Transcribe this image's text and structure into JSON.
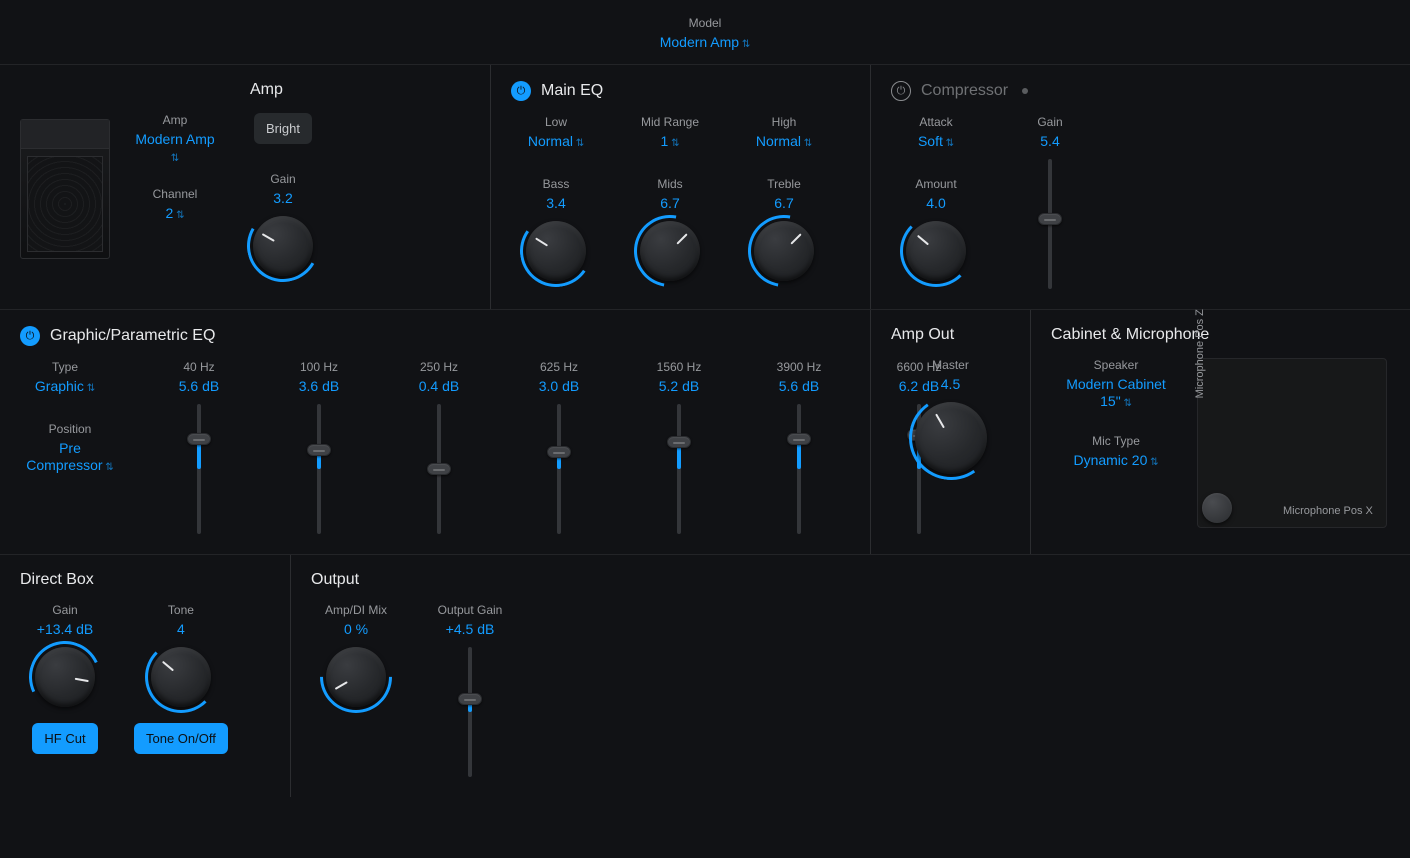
{
  "top": {
    "label": "Model",
    "value": "Modern Amp"
  },
  "amp": {
    "title": "Amp",
    "amp_label": "Amp",
    "amp_value": "Modern Amp",
    "channel_label": "Channel",
    "channel_value": "2",
    "bright_label": "Bright",
    "gain_label": "Gain",
    "gain_value": "3.2",
    "knob": {
      "arc_rot_deg": -15,
      "tick_deg": -60,
      "color": "#139cff"
    }
  },
  "main_eq": {
    "title": "Main EQ",
    "power_on": true,
    "low": {
      "label": "Low",
      "value": "Normal"
    },
    "mid": {
      "label": "Mid Range",
      "value": "1"
    },
    "high": {
      "label": "High",
      "value": "Normal"
    },
    "bass": {
      "label": "Bass",
      "value": "3.4",
      "arc_rot": -10,
      "tick": -58
    },
    "mids": {
      "label": "Mids",
      "value": "6.7",
      "arc_rot": 55,
      "tick": 45
    },
    "treble": {
      "label": "Treble",
      "value": "6.7",
      "arc_rot": 55,
      "tick": 45
    }
  },
  "compressor": {
    "title": "Compressor",
    "power_on": false,
    "attack": {
      "label": "Attack",
      "value": "Soft"
    },
    "amount": {
      "label": "Amount",
      "value": "4.0",
      "arc_rot": 0,
      "tick": -50
    },
    "gain": {
      "label": "Gain",
      "value": "5.4",
      "pct": 0.54
    }
  },
  "gpeq": {
    "title": "Graphic/Parametric EQ",
    "power_on": true,
    "type": {
      "label": "Type",
      "value": "Graphic"
    },
    "position": {
      "label": "Position",
      "value": "Pre Compressor"
    },
    "bands": [
      {
        "label": "40 Hz",
        "value": "5.6 dB",
        "pct": 0.73
      },
      {
        "label": "100 Hz",
        "value": "3.6 dB",
        "pct": 0.65
      },
      {
        "label": "250 Hz",
        "value": "0.4 dB",
        "pct": 0.5
      },
      {
        "label": "625 Hz",
        "value": "3.0 dB",
        "pct": 0.63
      },
      {
        "label": "1560 Hz",
        "value": "5.2 dB",
        "pct": 0.71
      },
      {
        "label": "3900 Hz",
        "value": "5.6 dB",
        "pct": 0.73
      },
      {
        "label": "6600 Hz",
        "value": "6.2 dB",
        "pct": 0.76
      }
    ]
  },
  "amp_out": {
    "title": "Amp Out",
    "master": {
      "label": "Master",
      "value": "4.5",
      "arc_rot": 10,
      "tick": -30
    }
  },
  "cabinet": {
    "title": "Cabinet & Microphone",
    "speaker": {
      "label": "Speaker",
      "value": "Modern Cabinet 15\""
    },
    "mic_type": {
      "label": "Mic Type",
      "value": "Dynamic 20"
    },
    "mic_x_label": "Microphone Pos X",
    "mic_z_label": "Microphone Pos Z"
  },
  "direct_box": {
    "title": "Direct Box",
    "gain": {
      "label": "Gain",
      "value": "+13.4 dB",
      "arc_rot": 110,
      "tick": 100
    },
    "tone": {
      "label": "Tone",
      "value": "4",
      "arc_rot": 0,
      "tick": -50
    },
    "hf_cut_label": "HF Cut",
    "tone_on_off_label": "Tone On/Off"
  },
  "output": {
    "title": "Output",
    "mix": {
      "label": "Amp/DI Mix",
      "value": "0 %",
      "arc_rot": -45,
      "tick": -120
    },
    "gain": {
      "label": "Output Gain",
      "value": "+4.5 dB",
      "pct": 0.6
    }
  },
  "colors": {
    "accent": "#139cff",
    "bg": "#111215",
    "panel_sep": "#2c2d30",
    "text_dim": "#97999d"
  }
}
